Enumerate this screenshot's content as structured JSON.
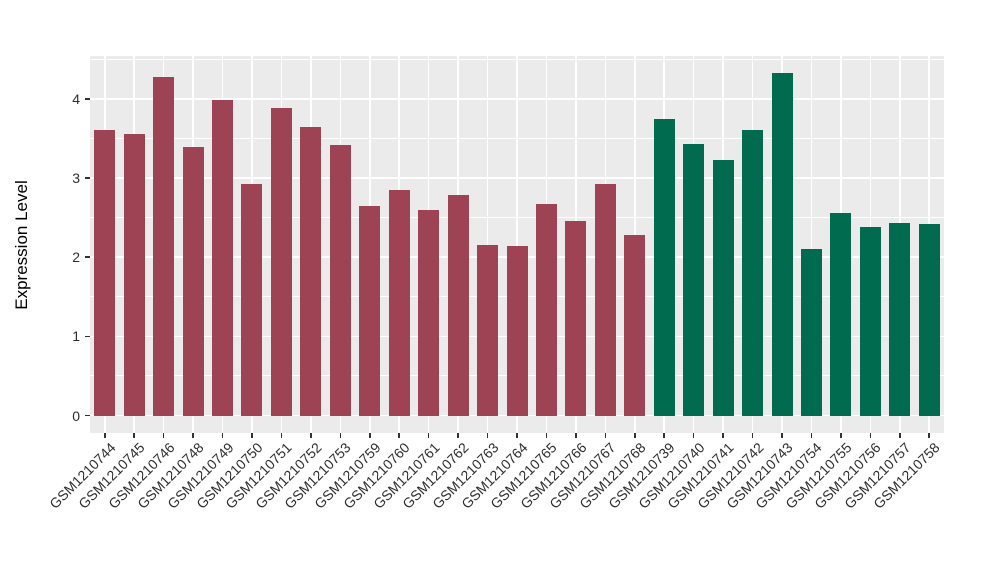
{
  "chart_data": {
    "type": "bar",
    "title": "",
    "xlabel": "",
    "ylabel": "Expression Level",
    "ylim": [
      -0.22,
      4.54
    ],
    "y_major_ticks": [
      {
        "value": 0,
        "label": "0"
      },
      {
        "value": 1,
        "label": "1"
      },
      {
        "value": 2,
        "label": "2"
      },
      {
        "value": 3,
        "label": "3"
      },
      {
        "value": 4,
        "label": "4"
      }
    ],
    "y_minor_ticks": [
      0.5,
      1.5,
      2.5,
      3.5,
      4.5
    ],
    "grid": "on",
    "legend": "none",
    "panel_background": "#EBEBEB",
    "gridline_color": "#FFFFFF",
    "group_colors": {
      "group1": "#9D4353",
      "group2": "#006B4E"
    },
    "bars": [
      {
        "label": "GSM1210744",
        "value": 3.6,
        "group": "group1"
      },
      {
        "label": "GSM1210745",
        "value": 3.56,
        "group": "group1"
      },
      {
        "label": "GSM1210746",
        "value": 4.28,
        "group": "group1"
      },
      {
        "label": "GSM1210748",
        "value": 3.39,
        "group": "group1"
      },
      {
        "label": "GSM1210749",
        "value": 3.99,
        "group": "group1"
      },
      {
        "label": "GSM1210750",
        "value": 2.93,
        "group": "group1"
      },
      {
        "label": "GSM1210751",
        "value": 3.88,
        "group": "group1"
      },
      {
        "label": "GSM1210752",
        "value": 3.64,
        "group": "group1"
      },
      {
        "label": "GSM1210753",
        "value": 3.42,
        "group": "group1"
      },
      {
        "label": "GSM1210759",
        "value": 2.65,
        "group": "group1"
      },
      {
        "label": "GSM1210760",
        "value": 2.85,
        "group": "group1"
      },
      {
        "label": "GSM1210761",
        "value": 2.59,
        "group": "group1"
      },
      {
        "label": "GSM1210762",
        "value": 2.78,
        "group": "group1"
      },
      {
        "label": "GSM1210763",
        "value": 2.15,
        "group": "group1"
      },
      {
        "label": "GSM1210764",
        "value": 2.14,
        "group": "group1"
      },
      {
        "label": "GSM1210765",
        "value": 2.67,
        "group": "group1"
      },
      {
        "label": "GSM1210766",
        "value": 2.46,
        "group": "group1"
      },
      {
        "label": "GSM1210767",
        "value": 2.93,
        "group": "group1"
      },
      {
        "label": "GSM1210768",
        "value": 2.28,
        "group": "group1"
      },
      {
        "label": "GSM1210739",
        "value": 3.74,
        "group": "group2"
      },
      {
        "label": "GSM1210740",
        "value": 3.43,
        "group": "group2"
      },
      {
        "label": "GSM1210741",
        "value": 3.23,
        "group": "group2"
      },
      {
        "label": "GSM1210742",
        "value": 3.61,
        "group": "group2"
      },
      {
        "label": "GSM1210743",
        "value": 4.32,
        "group": "group2"
      },
      {
        "label": "GSM1210754",
        "value": 2.1,
        "group": "group2"
      },
      {
        "label": "GSM1210755",
        "value": 2.56,
        "group": "group2"
      },
      {
        "label": "GSM1210756",
        "value": 2.38,
        "group": "group2"
      },
      {
        "label": "GSM1210757",
        "value": 2.43,
        "group": "group2"
      },
      {
        "label": "GSM1210758",
        "value": 2.42,
        "group": "group2"
      }
    ]
  }
}
